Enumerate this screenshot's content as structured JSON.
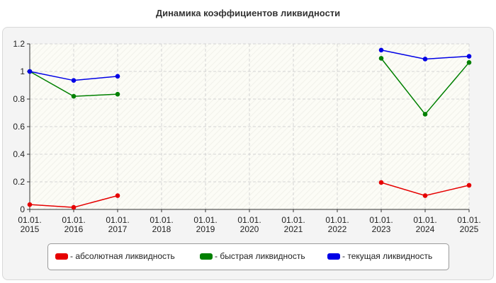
{
  "chart_data": {
    "type": "line",
    "title": "Динамика коэффициентов ликвидности",
    "xlabel": "",
    "ylabel": "",
    "ylim": [
      0,
      1.2
    ],
    "yticks": [
      "0",
      "0.2",
      "0.4",
      "0.6",
      "0.8",
      "1",
      "1.2"
    ],
    "categories": [
      [
        "01.01.",
        "2015"
      ],
      [
        "01.01.",
        "2016"
      ],
      [
        "01.01.",
        "2017"
      ],
      [
        "01.01.",
        "2018"
      ],
      [
        "01.01.",
        "2019"
      ],
      [
        "01.01.",
        "2020"
      ],
      [
        "01.01.",
        "2021"
      ],
      [
        "01.01.",
        "2022"
      ],
      [
        "01.01.",
        "2023"
      ],
      [
        "01.01.",
        "2024"
      ],
      [
        "01.01.",
        "2025"
      ]
    ],
    "grid": true,
    "legend_position": "bottom",
    "series": [
      {
        "name": "- абсолютная ликвидность",
        "color": "#e60000",
        "values": [
          0.035,
          0.015,
          0.1,
          null,
          null,
          null,
          null,
          null,
          0.195,
          0.1,
          0.175
        ]
      },
      {
        "name": "- быстрая ликвидность",
        "color": "#008000",
        "values": [
          1.0,
          0.82,
          0.835,
          null,
          null,
          null,
          null,
          null,
          1.095,
          0.69,
          1.065
        ]
      },
      {
        "name": "- текущая ликвидность",
        "color": "#0000e6",
        "values": [
          1.0,
          0.935,
          0.965,
          null,
          null,
          null,
          null,
          null,
          1.155,
          1.09,
          1.11
        ]
      }
    ]
  }
}
